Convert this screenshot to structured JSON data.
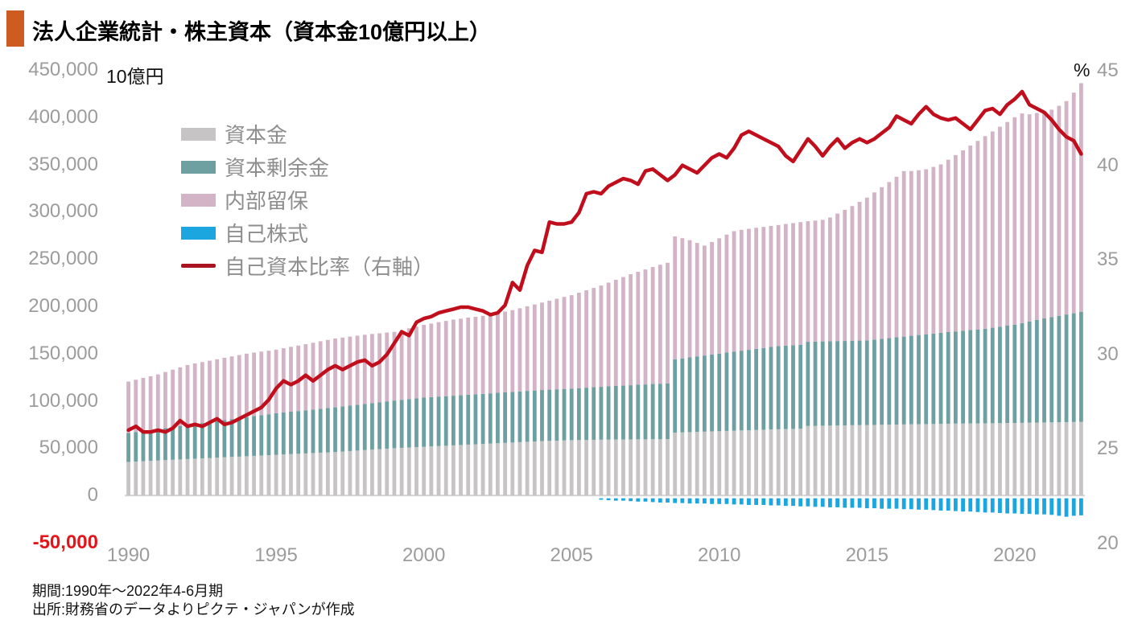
{
  "header": {
    "title": "法人企業統計・株主資本（資本金10億円以上）",
    "accent_color": "#cc5c22"
  },
  "left_axis": {
    "unit_label": "10億円",
    "ticks": [
      "450,000",
      "400,000",
      "350,000",
      "300,000",
      "250,000",
      "200,000",
      "150,000",
      "100,000",
      "50,000",
      "0",
      "-50,000"
    ],
    "tick_color": "#9c9c9c",
    "negative_tick_color": "#e3151b",
    "min": -50000,
    "max": 450000,
    "step": 50000
  },
  "right_axis": {
    "unit_label": "%",
    "ticks": [
      "45",
      "40",
      "35",
      "30",
      "25",
      "20"
    ],
    "min": 20,
    "max": 45,
    "step": 5
  },
  "x_axis": {
    "tick_years": [
      1990,
      1995,
      2000,
      2005,
      2010,
      2015,
      2020
    ],
    "tick_labels": [
      "1990",
      "1995",
      "2000",
      "2005",
      "2010",
      "2015",
      "2020"
    ]
  },
  "legend": [
    {
      "label": "資本金",
      "color": "#c6c4c4",
      "type": "bar"
    },
    {
      "label": "資本剰余金",
      "color": "#6e9fa1",
      "type": "bar"
    },
    {
      "label": "内部留保",
      "color": "#d3b4c6",
      "type": "bar"
    },
    {
      "label": "自己株式",
      "color": "#1ba6e0",
      "type": "bar"
    },
    {
      "label": "自己資本比率（右軸）",
      "color": "#a91420",
      "type": "line"
    }
  ],
  "footer": {
    "line1": "期間:1990年～2022年4-6月期",
    "line2": "出所:財務省のデータよりピクテ・ジャパンが作成"
  },
  "chart_data": {
    "type": "bar",
    "subtype": "stacked-bars-with-line",
    "title": "法人企業統計・株主資本（資本金10億円以上）",
    "x_start_year": 1990,
    "x_step_years": 0.25,
    "x_end_label": "2022年4-6月期",
    "bar_value_unit": "10億円",
    "left_ylim": [
      -50000,
      450000
    ],
    "right_ylim": [
      20,
      45
    ],
    "grid": "none",
    "legend_position": "upper-left-inside",
    "bar_series": [
      {
        "name": "資本金",
        "color": "#c6c4c4",
        "values": [
          35500,
          35900,
          36300,
          36600,
          37000,
          37400,
          37800,
          38100,
          38500,
          38900,
          39300,
          39600,
          40000,
          40400,
          40800,
          41100,
          41500,
          41900,
          42300,
          42600,
          43000,
          43400,
          43800,
          44100,
          44500,
          44900,
          45300,
          45600,
          46000,
          46500,
          47000,
          47500,
          48000,
          48500,
          49000,
          49500,
          50000,
          50400,
          50800,
          51100,
          51500,
          51900,
          52300,
          52600,
          53000,
          53400,
          53800,
          54100,
          54500,
          54900,
          55300,
          55600,
          56000,
          56400,
          56800,
          57100,
          57500,
          57800,
          58000,
          58300,
          58500,
          58600,
          58800,
          58900,
          59000,
          59100,
          59200,
          59200,
          59300,
          59400,
          59400,
          59500,
          59500,
          59600,
          66500,
          66700,
          67000,
          67300,
          67500,
          67800,
          68000,
          68300,
          68500,
          68800,
          69000,
          69300,
          69500,
          69800,
          70000,
          70200,
          70400,
          70600,
          73500,
          73600,
          73800,
          73900,
          74000,
          74100,
          74300,
          74400,
          74500,
          74600,
          74800,
          74900,
          75000,
          75100,
          75300,
          75400,
          75500,
          75600,
          75800,
          75900,
          76000,
          76100,
          76200,
          76200,
          76300,
          76400,
          76500,
          76600,
          76700,
          76800,
          77000,
          77100,
          77200,
          77300,
          77500,
          77600,
          77700,
          77800
        ]
      },
      {
        "name": "資本剰余金",
        "color": "#6e9fa1",
        "values": [
          30500,
          31200,
          31900,
          32500,
          33200,
          33900,
          34600,
          35200,
          35900,
          36600,
          37300,
          37900,
          38600,
          39300,
          40000,
          40600,
          41300,
          42000,
          42700,
          43300,
          44000,
          44400,
          44800,
          45200,
          45600,
          46000,
          46400,
          46800,
          47200,
          47600,
          48000,
          48400,
          48800,
          49200,
          49600,
          50000,
          50400,
          50800,
          51200,
          51600,
          52000,
          52100,
          52300,
          52400,
          52500,
          52600,
          52800,
          52900,
          53000,
          53100,
          53300,
          53400,
          53500,
          53600,
          53800,
          53900,
          54000,
          54100,
          54300,
          54400,
          54500,
          54900,
          55200,
          55600,
          55900,
          56300,
          56600,
          57000,
          57300,
          57700,
          58000,
          58400,
          58700,
          59000,
          77500,
          78300,
          79000,
          79800,
          80500,
          81300,
          82000,
          82800,
          83500,
          84300,
          85000,
          85800,
          86500,
          87300,
          88000,
          88300,
          88500,
          88800,
          89000,
          89100,
          89100,
          89200,
          89300,
          89300,
          89400,
          89400,
          89500,
          90200,
          90900,
          91600,
          92300,
          92900,
          93600,
          94300,
          95000,
          95600,
          96300,
          96900,
          97500,
          98100,
          98800,
          99400,
          100000,
          101000,
          102000,
          103000,
          104000,
          105500,
          107000,
          108500,
          110000,
          111300,
          112500,
          113800,
          115000,
          116500
        ]
      },
      {
        "name": "内部留保",
        "color": "#d3b4c6",
        "values": [
          54500,
          55300,
          56200,
          57000,
          57800,
          59300,
          60700,
          62200,
          63600,
          64100,
          64500,
          65000,
          65400,
          65900,
          66300,
          66800,
          67200,
          67200,
          67200,
          67200,
          67200,
          67900,
          68600,
          69200,
          69900,
          70600,
          71400,
          72100,
          72800,
          72900,
          73000,
          73100,
          73200,
          73100,
          72900,
          72800,
          72600,
          73700,
          74800,
          75800,
          76900,
          77800,
          78700,
          79600,
          80500,
          81000,
          81500,
          82000,
          82500,
          83500,
          84500,
          85500,
          86500,
          88000,
          89500,
          91000,
          92500,
          94100,
          95800,
          97300,
          98800,
          100900,
          103000,
          105000,
          107100,
          109700,
          112300,
          114800,
          117400,
          119500,
          121600,
          123700,
          125800,
          127500,
          130000,
          127100,
          124000,
          120000,
          116300,
          119000,
          122000,
          124800,
          127500,
          127800,
          128000,
          128000,
          128000,
          128000,
          128000,
          128600,
          129100,
          129700,
          127500,
          128000,
          128600,
          130900,
          134800,
          138600,
          142400,
          146700,
          151000,
          155700,
          160400,
          165000,
          169800,
          175000,
          174200,
          174300,
          174500,
          176300,
          178000,
          182300,
          186500,
          190800,
          195100,
          199400,
          203700,
          207600,
          211500,
          215400,
          219300,
          221700,
          219100,
          218900,
          218800,
          219400,
          222100,
          225700,
          233300,
          241700
        ]
      },
      {
        "name": "自己株式",
        "color": "#1ba6e0",
        "values": [
          0,
          0,
          0,
          0,
          0,
          0,
          0,
          0,
          0,
          0,
          0,
          0,
          0,
          0,
          0,
          0,
          0,
          0,
          0,
          0,
          0,
          0,
          0,
          0,
          0,
          0,
          0,
          0,
          0,
          0,
          0,
          0,
          0,
          0,
          0,
          0,
          0,
          0,
          0,
          0,
          0,
          0,
          0,
          0,
          0,
          0,
          0,
          0,
          0,
          0,
          0,
          0,
          0,
          0,
          0,
          0,
          0,
          0,
          -1500,
          -2000,
          -2500,
          -3000,
          -3500,
          -4000,
          -4500,
          -5000,
          -5500,
          -5500,
          -6000,
          -6500,
          -6500,
          -7000,
          -7500,
          -7500,
          -8000,
          -8000,
          -8500,
          -8500,
          -8500,
          -9000,
          -9000,
          -9000,
          -9500,
          -9500,
          -10000,
          -10000,
          -10000,
          -10500,
          -10500,
          -11000,
          -11000,
          -11500,
          -11500,
          -12000,
          -12000,
          -12500,
          -12500,
          -13000,
          -13000,
          -13000,
          -13500,
          -13500,
          -14000,
          -14000,
          -14000,
          -14500,
          -14500,
          -15000,
          -15000,
          -15500,
          -16000,
          -16000,
          -16500,
          -17000,
          -17000,
          -17500,
          -18000,
          -18000,
          -18500,
          -19000,
          -19000,
          -19500,
          -19500,
          -20000,
          -20000,
          -20500,
          -21500,
          -22500,
          -21500,
          -21000
        ]
      }
    ],
    "line_series": {
      "name": "自己資本比率（右軸）",
      "color": "#c10e1c",
      "axis": "right",
      "unit": "%",
      "values": [
        26.0,
        26.2,
        25.9,
        25.9,
        26.0,
        25.9,
        26.1,
        26.5,
        26.2,
        26.3,
        26.2,
        26.4,
        26.6,
        26.3,
        26.4,
        26.6,
        26.8,
        27.0,
        27.2,
        27.6,
        28.2,
        28.6,
        28.4,
        28.6,
        28.9,
        28.6,
        28.9,
        29.2,
        29.4,
        29.2,
        29.4,
        29.6,
        29.7,
        29.4,
        29.6,
        30.0,
        30.6,
        31.2,
        31.0,
        31.7,
        31.9,
        32.0,
        32.2,
        32.3,
        32.4,
        32.5,
        32.5,
        32.4,
        32.3,
        32.1,
        32.2,
        32.6,
        33.8,
        33.4,
        34.7,
        35.5,
        35.4,
        37.0,
        36.9,
        36.9,
        37.0,
        37.5,
        38.5,
        38.6,
        38.5,
        38.9,
        39.1,
        39.3,
        39.2,
        39.0,
        39.7,
        39.8,
        39.5,
        39.2,
        39.5,
        40.0,
        39.8,
        39.6,
        40.0,
        40.4,
        40.6,
        40.4,
        40.9,
        41.6,
        41.8,
        41.6,
        41.4,
        41.2,
        41.0,
        40.5,
        40.2,
        40.8,
        41.4,
        41.0,
        40.5,
        41.0,
        41.4,
        40.9,
        41.2,
        41.4,
        41.2,
        41.4,
        41.7,
        42.0,
        42.6,
        42.4,
        42.2,
        42.7,
        43.1,
        42.7,
        42.5,
        42.4,
        42.5,
        42.2,
        41.9,
        42.4,
        42.9,
        43.0,
        42.7,
        43.2,
        43.5,
        43.9,
        43.2,
        43.0,
        42.8,
        42.4,
        41.9,
        41.5,
        41.3,
        40.6
      ]
    }
  }
}
